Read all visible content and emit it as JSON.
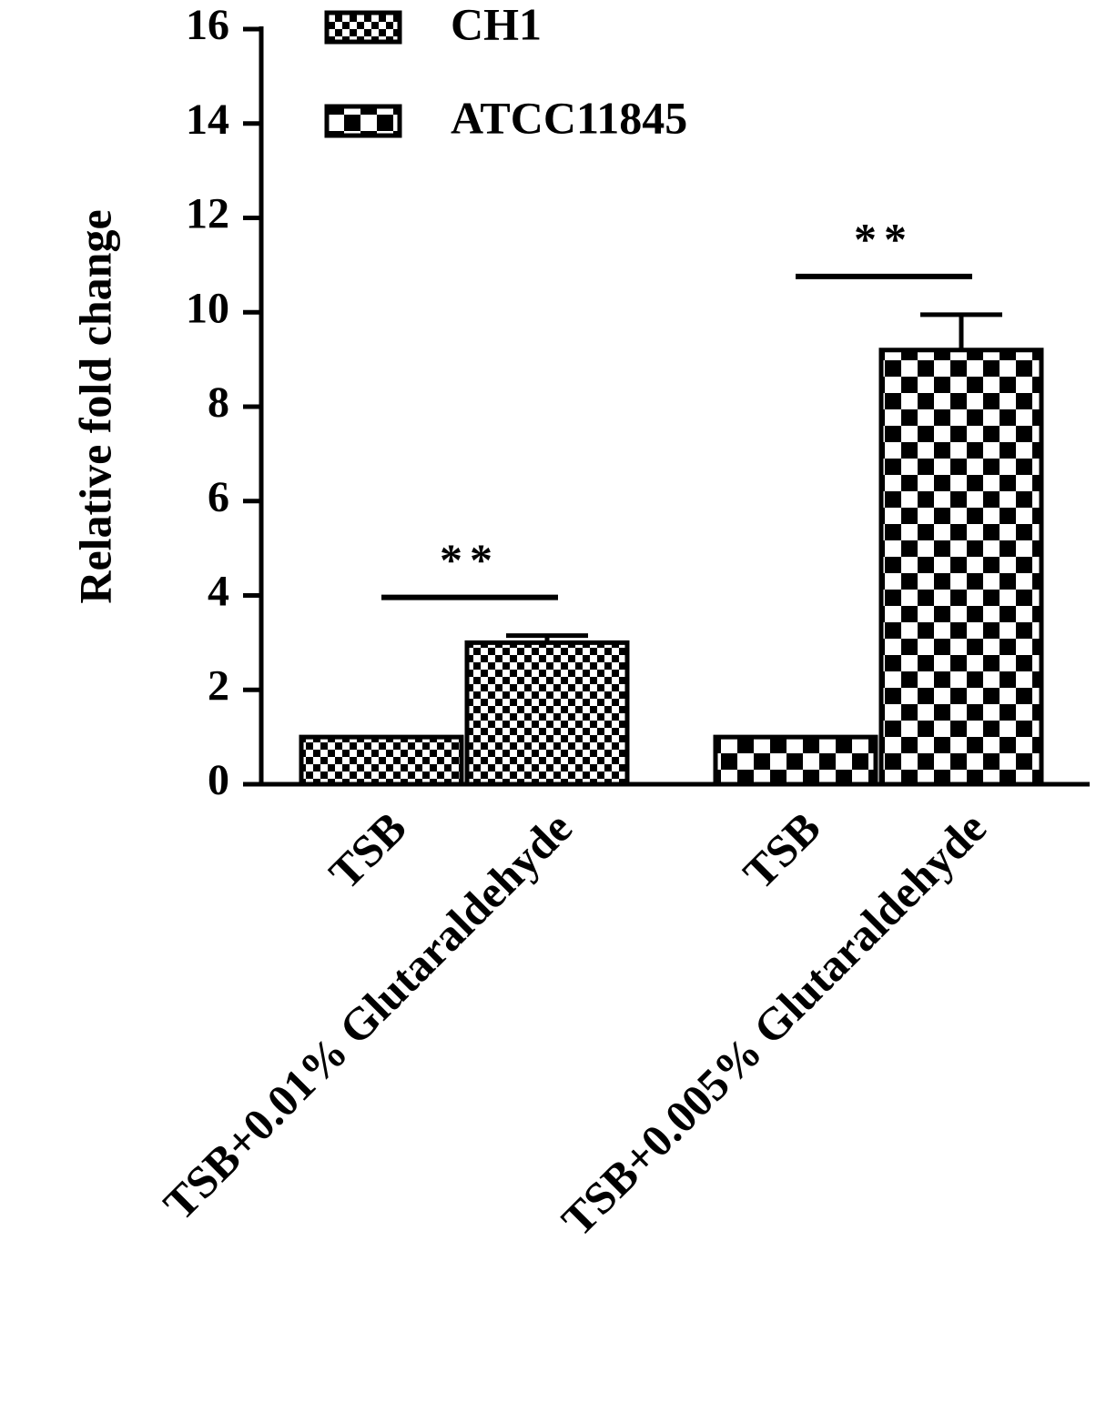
{
  "chart_data": {
    "type": "bar",
    "y_label": "Relative fold change",
    "categories": [
      "TSB",
      "TSB+0.01% Glutaraldehyde",
      "TSB",
      "TSB+0.005% Glutaraldehyde"
    ],
    "series": [
      {
        "name": "CH1",
        "color": "#000000",
        "values": [
          1,
          3,
          null,
          null
        ],
        "errors": [
          null,
          0.15,
          null,
          null
        ]
      },
      {
        "name": "ATCC11845",
        "color": "#000000",
        "values": [
          null,
          null,
          1,
          9.2
        ],
        "errors": [
          null,
          null,
          null,
          0.75
        ]
      }
    ],
    "annotations": [
      "**",
      "**"
    ],
    "ylim": [
      0,
      16
    ],
    "yticks": [
      0,
      2,
      4,
      6,
      8,
      10,
      12,
      14,
      16
    ],
    "grid": false
  }
}
